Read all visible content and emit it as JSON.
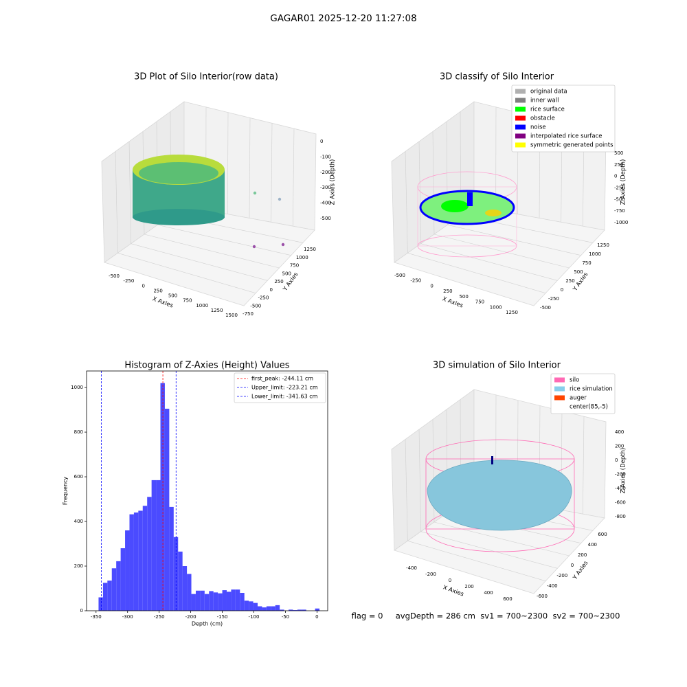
{
  "title": "GAGAR01 2025-12-20 11:27:08",
  "footer": "flag = 0     avgDepth = 286 cm  sv1 = 700~2300  sv2 = 700~2300",
  "chart_data": [
    {
      "type": "scatter3d",
      "title": "3D Plot of Silo Interior(row data)",
      "xlabel": "X Axies",
      "ylabel": "Y Axies",
      "zlabel": "Z Axies (Depth)",
      "xticks": [
        -500,
        -250,
        0,
        250,
        500,
        750,
        1000,
        1250,
        1500
      ],
      "yticks": [
        -750,
        -500,
        -250,
        0,
        250,
        500,
        750,
        1000,
        1250
      ],
      "zticks": [
        0,
        -100,
        -200,
        -300,
        -400,
        -500
      ]
    },
    {
      "type": "scatter3d",
      "title": "3D classify of Silo Interior",
      "xlabel": "X Axies",
      "ylabel": "Y Axies",
      "zlabel": "Z Axies (Depth)",
      "xticks": [
        -500,
        -250,
        0,
        250,
        500,
        750,
        1000,
        1250
      ],
      "yticks": [
        -500,
        -250,
        0,
        250,
        500,
        750,
        1000,
        1250
      ],
      "zticks": [
        500,
        250,
        0,
        -250,
        -500,
        -750,
        -1000
      ],
      "legend": [
        {
          "label": "original data",
          "color": "#b0b0b0"
        },
        {
          "label": "inner wall",
          "color": "#808080"
        },
        {
          "label": "rice surface",
          "color": "#00ff00"
        },
        {
          "label": "obstacle",
          "color": "#ff0000"
        },
        {
          "label": "noise",
          "color": "#0000ff"
        },
        {
          "label": "interpolated rice surface",
          "color": "#800080"
        },
        {
          "label": "symmetric generated points",
          "color": "#ffff00"
        }
      ]
    },
    {
      "type": "histogram",
      "title": "Histogram of Z-Axies (Height) Values",
      "xlabel": "Depth (cm)",
      "ylabel": "Frequency",
      "color": "#4b4bff",
      "bins": [
        -346,
        -339,
        -332,
        -325,
        -318,
        -311,
        -304,
        -297,
        -290,
        -283,
        -276,
        -269,
        -262,
        -255,
        -248,
        -241,
        -234,
        -227,
        -220,
        -213,
        -206,
        -199,
        -192,
        -185,
        -178,
        -171,
        -164,
        -157,
        -150,
        -143,
        -136,
        -129,
        -122,
        -115,
        -108,
        -101,
        -94,
        -87,
        -80,
        -73,
        -66,
        -59,
        -52,
        -45,
        -38,
        -31,
        -24,
        -17,
        -10,
        -3,
        4
      ],
      "counts": [
        60,
        125,
        135,
        190,
        222,
        280,
        360,
        432,
        440,
        448,
        470,
        510,
        585,
        585,
        1020,
        905,
        465,
        330,
        265,
        200,
        165,
        75,
        90,
        90,
        75,
        88,
        82,
        78,
        92,
        85,
        95,
        95,
        80,
        45,
        42,
        35,
        20,
        15,
        20,
        20,
        25,
        5,
        0,
        5,
        3,
        5,
        5,
        0,
        0,
        10
      ],
      "xlim": [
        -365,
        17
      ],
      "ylim": [
        0,
        1074
      ],
      "xticks": [
        -350,
        -300,
        -250,
        -200,
        -150,
        -100,
        -50,
        0
      ],
      "yticks": [
        0,
        200,
        400,
        600,
        800,
        1000
      ],
      "lines": [
        {
          "label": "first_peak: -244.11 cm",
          "value": -244.11,
          "color": "#ff0000"
        },
        {
          "label": "Upper_limit: -223.21 cm",
          "value": -223.21,
          "color": "#0000ff"
        },
        {
          "label": "Lower_limit: -341.63 cm",
          "value": -341.63,
          "color": "#0000ff"
        }
      ]
    },
    {
      "type": "surface3d",
      "title": "3D simulation of Silo Interior",
      "xlabel": "X Axies",
      "ylabel": "Y Axies",
      "zlabel": "Z Axies (Depth)",
      "xticks": [
        -400,
        -200,
        0,
        200,
        400,
        600
      ],
      "yticks": [
        -600,
        -400,
        -200,
        0,
        200,
        400,
        600
      ],
      "zticks": [
        400,
        200,
        0,
        -200,
        -400,
        -600,
        -800
      ],
      "legend": [
        {
          "label": "silo",
          "color": "#ff69b4"
        },
        {
          "label": "rice simulation",
          "color": "#87ceeb"
        },
        {
          "label": "auger",
          "color": "#ff4500"
        },
        {
          "label": "center(85,-5)"
        }
      ]
    }
  ]
}
